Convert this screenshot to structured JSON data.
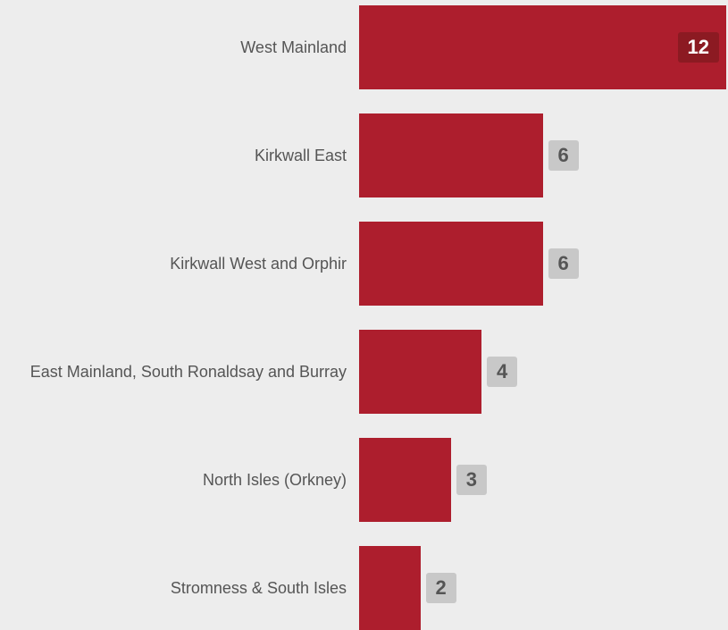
{
  "colors": {
    "background": "#ededed",
    "bar": "#ad1e2d",
    "value_badge_outside": "#c8c8c8",
    "value_text_outside": "#555555",
    "value_badge_inside": "#8c1a22",
    "value_text_inside": "#ffffff",
    "category_text": "#555555"
  },
  "chart_data": {
    "type": "bar",
    "orientation": "horizontal",
    "categories": [
      "West Mainland",
      "Kirkwall East",
      "Kirkwall West and Orphir",
      "East Mainland, South Ronaldsay and Burray",
      "North Isles (Orkney)",
      "Stromness & South Isles"
    ],
    "values": [
      12,
      6,
      6,
      4,
      3,
      2
    ],
    "value_labels": [
      "12",
      "6",
      "6",
      "4",
      "3",
      "2"
    ],
    "xlim": [
      0,
      12
    ],
    "grid": false,
    "legend": "none"
  }
}
